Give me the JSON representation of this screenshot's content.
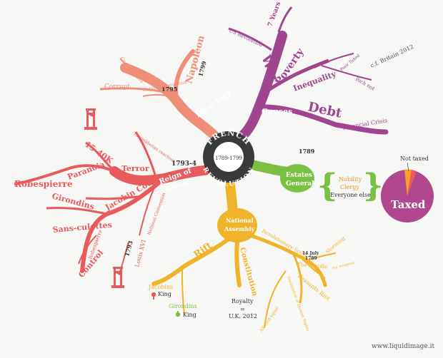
{
  "center": {
    "title_top": "FRENCH",
    "title_bottom": "REVOLUTION",
    "dates": "1789-1799"
  },
  "branches": {
    "directory": {
      "label": "Directory",
      "year": "1795",
      "napoleon": "Napoleon",
      "napoleon_year": "1799",
      "conservative": "Conservative",
      "corrupt": "Corrupt",
      "national_convention": "National Convention"
    },
    "causes": {
      "label": "Causes",
      "war": "War",
      "seven_years": "7 Years",
      "us_revolution": "US Revolution",
      "poverty": "Poverty",
      "inequality": "Inequality",
      "poor_taxed": "Poor Taxed",
      "rich_not": "Rich not",
      "debt": "Debt",
      "financial_crisis": "Financial Crisis",
      "cf_britain": "c.f. Britain 2012"
    },
    "estates": {
      "label_line1": "Estates",
      "label_line2": "General",
      "year": "1789",
      "items": [
        "Nobility",
        "Clergy",
        "Everyone else"
      ]
    },
    "pie": {
      "not_taxed_label": "Not taxed",
      "taxed_label": "Taxed"
    },
    "reign": {
      "label_line1": "Reign of",
      "label_line2": "Terror",
      "year": "1793-4",
      "thermidorian": "Thermidorian reaction",
      "terror": "Terror",
      "paranoia": "Paranoia",
      "fifteen_forty_k": "15-40K",
      "robespierre": "Robespierre",
      "jacobin_coup": "Jacobin Coup",
      "girondins": "Girondins",
      "sans_culottes": "Sans-culottes",
      "robespierre_small": "Robespierre",
      "control": "Control",
      "year_1793": "1793",
      "louis_xvi": "Louis XVI",
      "national_convention": "National Convention"
    },
    "assembly": {
      "label_line1": "National",
      "label_line2": "Assembly",
      "rift": "Rift",
      "constitution": "Constitution",
      "jacobins": "Jacobins",
      "jacobins_king": "King",
      "girondins": "Girondins",
      "girondins_king": "King",
      "royalty": "Royalty",
      "equals": "=",
      "uk": "U.K. 2012",
      "revolutionary_spirit": "Revolutionary Spirit",
      "date": "14 July",
      "date_year": "1789",
      "bastille": "The Bastille",
      "storming": "Storming",
      "for_weapons": "For weapons",
      "peasants_riot": "Peasants Riot",
      "declaration": "Declaration of Human Rights",
      "all_men_equal": "All men equal"
    }
  },
  "footer": {
    "credit": "www.liquidimage.it"
  },
  "colors": {
    "directory": "#f08f79",
    "causes": "#a0458f",
    "estates": "#7ac143",
    "reign": "#e85a5c",
    "assembly": "#f0b32a",
    "center_ring": "#3a3a3a",
    "pie_main": "#b0478f",
    "pie_orange": "#f4a12d",
    "pie_red": "#e85a5c"
  }
}
